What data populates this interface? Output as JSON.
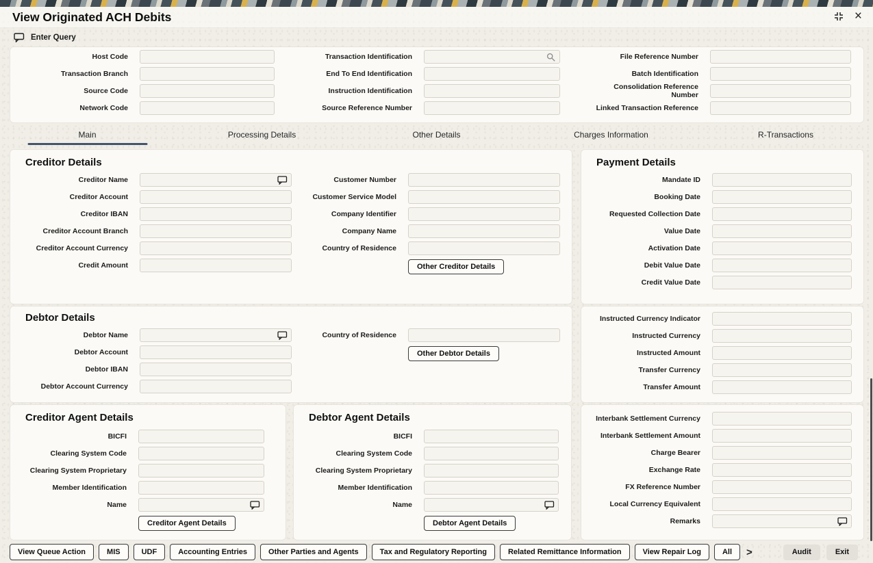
{
  "window": {
    "title": "View Originated ACH Debits",
    "enter_query": "Enter Query",
    "close_glyph": "×"
  },
  "header_fields": {
    "col1": [
      {
        "label": "Host Code",
        "value": ""
      },
      {
        "label": "Transaction Branch",
        "value": ""
      },
      {
        "label": "Source Code",
        "value": ""
      },
      {
        "label": "Network Code",
        "value": ""
      }
    ],
    "col2": [
      {
        "label": "Transaction Identification",
        "value": "",
        "icon": "search"
      },
      {
        "label": "End To End Identification",
        "value": ""
      },
      {
        "label": "Instruction Identification",
        "value": ""
      },
      {
        "label": "Source Reference Number",
        "value": ""
      }
    ],
    "col3": [
      {
        "label": "File Reference Number",
        "value": ""
      },
      {
        "label": "Batch Identification",
        "value": ""
      },
      {
        "label": "Consolidation Reference Number",
        "value": ""
      },
      {
        "label": "Linked Transaction Reference",
        "value": ""
      }
    ]
  },
  "tabs": [
    {
      "label": "Main",
      "active": true
    },
    {
      "label": "Processing Details",
      "active": false
    },
    {
      "label": "Other Details",
      "active": false
    },
    {
      "label": "Charges Information",
      "active": false
    },
    {
      "label": "R-Transactions",
      "active": false
    }
  ],
  "sections": {
    "creditor_details": {
      "title": "Creditor Details",
      "left_fields": [
        {
          "label": "Creditor Name",
          "value": "",
          "icon": "remarks"
        },
        {
          "label": "Creditor Account",
          "value": ""
        },
        {
          "label": "Creditor IBAN",
          "value": ""
        },
        {
          "label": "Creditor Account Branch",
          "value": ""
        },
        {
          "label": "Creditor Account Currency",
          "value": ""
        },
        {
          "label": "Credit Amount",
          "value": ""
        }
      ],
      "right_fields": [
        {
          "label": "Customer Number",
          "value": ""
        },
        {
          "label": "Customer Service Model",
          "value": ""
        },
        {
          "label": "Company Identifier",
          "value": ""
        },
        {
          "label": "Company Name",
          "value": ""
        },
        {
          "label": "Country of Residence",
          "value": ""
        }
      ],
      "button": "Other Creditor Details"
    },
    "payment_details": {
      "title": "Payment Details",
      "fields": [
        {
          "label": "Mandate ID",
          "value": ""
        },
        {
          "label": "Booking Date",
          "value": ""
        },
        {
          "label": "Requested Collection Date",
          "value": ""
        },
        {
          "label": "Value Date",
          "value": ""
        },
        {
          "label": "Activation Date",
          "value": ""
        },
        {
          "label": "Debit Value Date",
          "value": ""
        },
        {
          "label": "Credit Value Date",
          "value": ""
        }
      ]
    },
    "debtor_details": {
      "title": "Debtor Details",
      "left_fields": [
        {
          "label": "Debtor Name",
          "value": "",
          "icon": "remarks"
        },
        {
          "label": "Debtor Account",
          "value": ""
        },
        {
          "label": "Debtor IBAN",
          "value": ""
        },
        {
          "label": "Debtor Account Currency",
          "value": ""
        }
      ],
      "right_fields": [
        {
          "label": "Country of Residence",
          "value": ""
        }
      ],
      "button": "Other Debtor Details"
    },
    "instructed_details": {
      "fields": [
        {
          "label": "Instructed Currency Indicator",
          "value": ""
        },
        {
          "label": "Instructed Currency",
          "value": ""
        },
        {
          "label": "Instructed Amount",
          "value": ""
        },
        {
          "label": "Transfer Currency",
          "value": ""
        },
        {
          "label": "Transfer Amount",
          "value": ""
        }
      ]
    },
    "creditor_agent": {
      "title": "Creditor Agent Details",
      "fields": [
        {
          "label": "BICFI",
          "value": ""
        },
        {
          "label": "Clearing System Code",
          "value": ""
        },
        {
          "label": "Clearing System Proprietary",
          "value": ""
        },
        {
          "label": "Member Identification",
          "value": ""
        },
        {
          "label": "Name",
          "value": "",
          "icon": "remarks"
        }
      ],
      "button": "Creditor Agent Details"
    },
    "debtor_agent": {
      "title": "Debtor Agent Details",
      "fields": [
        {
          "label": "BICFI",
          "value": ""
        },
        {
          "label": "Clearing System Code",
          "value": ""
        },
        {
          "label": "Clearing System Proprietary",
          "value": ""
        },
        {
          "label": "Member Identification",
          "value": ""
        },
        {
          "label": "Name",
          "value": "",
          "icon": "remarks"
        }
      ],
      "button": "Debtor Agent Details"
    },
    "settlement_details": {
      "fields": [
        {
          "label": "Interbank Settlement Currency",
          "value": ""
        },
        {
          "label": "Interbank Settlement Amount",
          "value": ""
        },
        {
          "label": "Charge Bearer",
          "value": ""
        },
        {
          "label": "Exchange Rate",
          "value": ""
        },
        {
          "label": "FX Reference Number",
          "value": ""
        },
        {
          "label": "Local Currency Equivalent",
          "value": ""
        },
        {
          "label": "Remarks",
          "value": "",
          "icon": "remarks"
        }
      ]
    }
  },
  "footer": {
    "buttons": [
      "View Queue Action",
      "MIS",
      "UDF",
      "Accounting Entries",
      "Other Parties and Agents",
      "Tax and Regulatory Reporting",
      "Related Remittance Information",
      "View Repair Log",
      "All"
    ],
    "more_label": ">",
    "right_buttons": [
      "Audit",
      "Exit"
    ]
  },
  "colors": {
    "active_tab_underline": "#44546e",
    "accent_yellow": "#d9b14c",
    "panel_bg": "#fbfaf6",
    "page_bg": "#f0eee7"
  }
}
